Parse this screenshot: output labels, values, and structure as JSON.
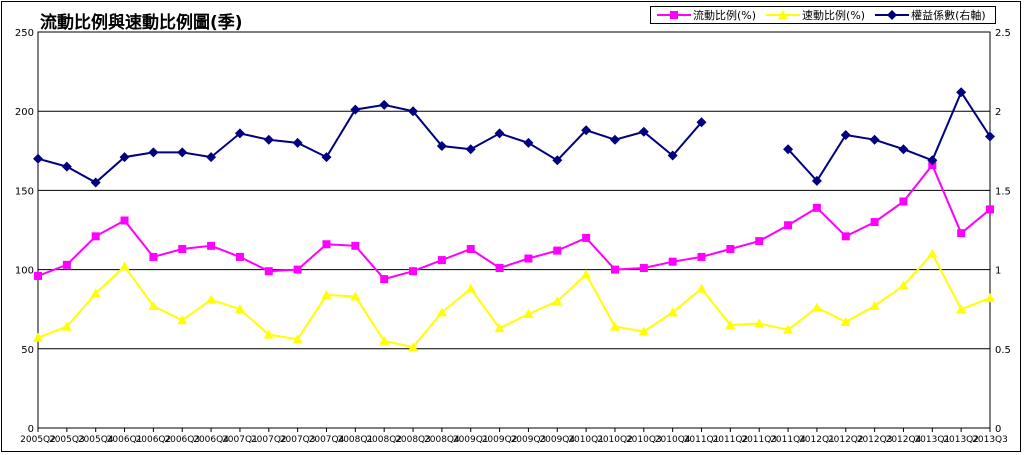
{
  "chart_data": {
    "type": "line",
    "title": "流動比例與速動比例圖(季)",
    "categories": [
      "2005Q2",
      "2005Q3",
      "2005Q4",
      "2006Q1",
      "2006Q2",
      "2006Q3",
      "2006Q4",
      "2007Q1",
      "2007Q2",
      "2007Q3",
      "2007Q4",
      "2008Q1",
      "2008Q2",
      "2008Q3",
      "2008Q4",
      "2009Q1",
      "2009Q2",
      "2009Q3",
      "2009Q4",
      "2010Q1",
      "2010Q2",
      "2010Q3",
      "2010Q4",
      "2011Q1",
      "2011Q2",
      "2011Q3",
      "2011Q4",
      "2012Q1",
      "2012Q2",
      "2012Q3",
      "2012Q4",
      "2013Q1",
      "2013Q2",
      "2013Q3"
    ],
    "ylim_left": [
      0,
      250
    ],
    "ylim_right": [
      0,
      2.5
    ],
    "yticks_left": [
      "0",
      "50",
      "100",
      "150",
      "200",
      "250"
    ],
    "yticks_right": [
      "0",
      "0.5",
      "1",
      "1.5",
      "2",
      "2.5"
    ],
    "grid": true,
    "legend_position": "top-right",
    "series": [
      {
        "name": "流動比例(%)",
        "axis": "left",
        "color": "#ff00ff",
        "marker": "square",
        "values": [
          96,
          103,
          121,
          131,
          108,
          113,
          115,
          108,
          99,
          100,
          116,
          115,
          94,
          99,
          106,
          113,
          101,
          107,
          112,
          120,
          100,
          101,
          105,
          108,
          113,
          118,
          128,
          139,
          121,
          130,
          143,
          166,
          123,
          138
        ]
      },
      {
        "name": "速動比例(%)",
        "axis": "left",
        "color": "#ffff00",
        "marker": "triangle",
        "values": [
          57,
          64,
          85,
          102,
          77,
          68,
          81,
          75,
          59,
          56,
          84,
          83,
          55,
          51,
          73,
          88,
          63,
          72,
          80,
          97,
          64,
          61,
          73,
          88,
          65,
          66,
          62,
          76,
          67,
          77,
          90,
          110,
          75,
          82
        ]
      },
      {
        "name": "權益係數(右軸)",
        "axis": "right",
        "color": "#000080",
        "marker": "diamond",
        "values": [
          1.7,
          1.65,
          1.55,
          1.71,
          1.74,
          1.74,
          1.71,
          1.86,
          1.82,
          1.8,
          1.71,
          2.01,
          2.04,
          2.0,
          1.78,
          1.76,
          1.86,
          1.8,
          1.69,
          1.88,
          1.82,
          1.87,
          1.72,
          1.93,
          null,
          null,
          1.76,
          1.56,
          1.85,
          1.82,
          1.76,
          1.69,
          2.12,
          1.84
        ]
      }
    ]
  }
}
